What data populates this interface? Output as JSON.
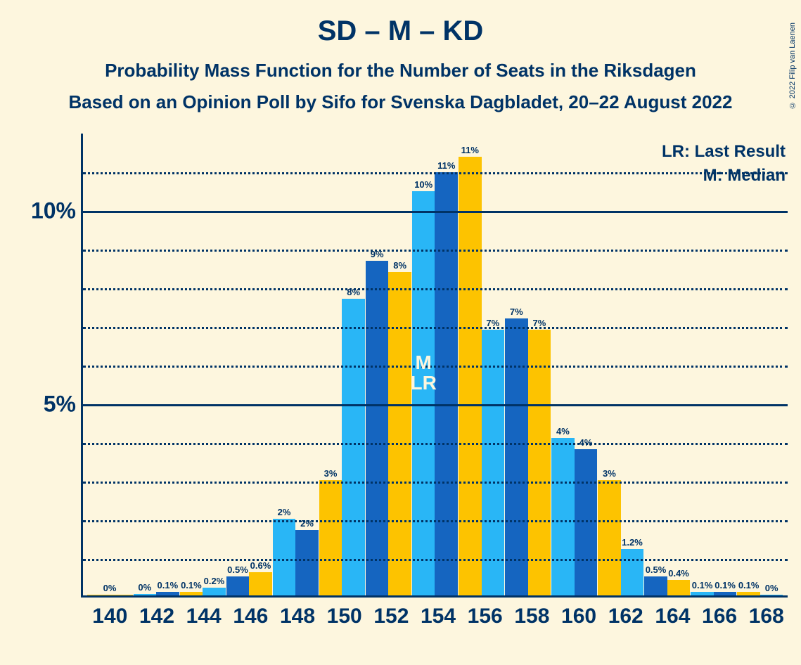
{
  "title_main": "SD – M – KD",
  "title_sub": "Probability Mass Function for the Number of Seats in the Riksdagen",
  "title_sub2": "Based on an Opinion Poll by Sifo for Svenska Dagbladet, 20–22 August 2022",
  "credit": "© 2022 Filip van Laenen",
  "legend": {
    "lr": "LR: Last Result",
    "m": "M: Median"
  },
  "chart": {
    "type": "bar",
    "background_color": "#fdf6de",
    "axis_color": "#003366",
    "text_color": "#003366",
    "bar_colors": [
      "#fdc300",
      "#29b6f6",
      "#1565c0"
    ],
    "y_max": 12,
    "y_ticks_major": [
      5,
      10
    ],
    "y_ticks_minor": [
      1,
      2,
      3,
      4,
      6,
      7,
      8,
      9,
      11
    ],
    "y_tick_labels": {
      "5": "5%",
      "10": "10%"
    },
    "x_labels": [
      "140",
      "142",
      "144",
      "146",
      "148",
      "150",
      "152",
      "154",
      "156",
      "158",
      "160",
      "162",
      "164",
      "166",
      "168"
    ],
    "groups": [
      {
        "x": "140",
        "bars": [
          {
            "v": 0,
            "l": "0%"
          }
        ]
      },
      {
        "x": "142",
        "bars": [
          {
            "v": 0.03,
            "l": "0%"
          },
          {
            "v": 0.1,
            "l": "0.1%"
          }
        ]
      },
      {
        "x": "144",
        "bars": [
          {
            "v": 0.1,
            "l": "0.1%"
          },
          {
            "v": 0.2,
            "l": "0.2%"
          }
        ]
      },
      {
        "x": "146",
        "bars": [
          {
            "v": 0.5,
            "l": "0.5%"
          },
          {
            "v": 0.6,
            "l": "0.6%"
          }
        ]
      },
      {
        "x": "148",
        "bars": [
          {
            "v": 2,
            "l": "2%"
          },
          {
            "v": 1.7,
            "l": "2%"
          }
        ]
      },
      {
        "x": "150",
        "bars": [
          {
            "v": 3,
            "l": "3%"
          },
          {
            "v": 7.7,
            "l": "8%"
          }
        ]
      },
      {
        "x": "152",
        "bars": [
          {
            "v": 8.7,
            "l": "9%"
          },
          {
            "v": 8.4,
            "l": "8%"
          }
        ]
      },
      {
        "x": "154",
        "bars": [
          {
            "v": 10.5,
            "l": "10%"
          },
          {
            "v": 11,
            "l": "11%"
          }
        ]
      },
      {
        "x": "156",
        "bars": [
          {
            "v": 11.4,
            "l": "11%"
          },
          {
            "v": 6.9,
            "l": "7%"
          }
        ]
      },
      {
        "x": "158",
        "bars": [
          {
            "v": 7.2,
            "l": "7%"
          },
          {
            "v": 6.9,
            "l": "7%"
          }
        ]
      },
      {
        "x": "160",
        "bars": [
          {
            "v": 4.1,
            "l": "4%"
          },
          {
            "v": 3.8,
            "l": "4%"
          }
        ]
      },
      {
        "x": "162",
        "bars": [
          {
            "v": 3,
            "l": "3%"
          },
          {
            "v": 1.2,
            "l": "1.2%"
          }
        ]
      },
      {
        "x": "164",
        "bars": [
          {
            "v": 0.5,
            "l": "0.5%"
          },
          {
            "v": 0.4,
            "l": "0.4%"
          }
        ]
      },
      {
        "x": "166",
        "bars": [
          {
            "v": 0.1,
            "l": "0.1%"
          },
          {
            "v": 0.1,
            "l": "0.1%"
          }
        ]
      },
      {
        "x": "168",
        "bars": [
          {
            "v": 0.1,
            "l": "0.1%"
          },
          {
            "v": 0.02,
            "l": "0%"
          }
        ]
      }
    ],
    "annotations": {
      "median_group_index": 7,
      "text_top": "M",
      "text_bottom": "LR"
    },
    "title_fontsize": 40,
    "subtitle_fontsize": 26,
    "axis_label_fontsize": 30,
    "value_label_fontsize": 13
  }
}
